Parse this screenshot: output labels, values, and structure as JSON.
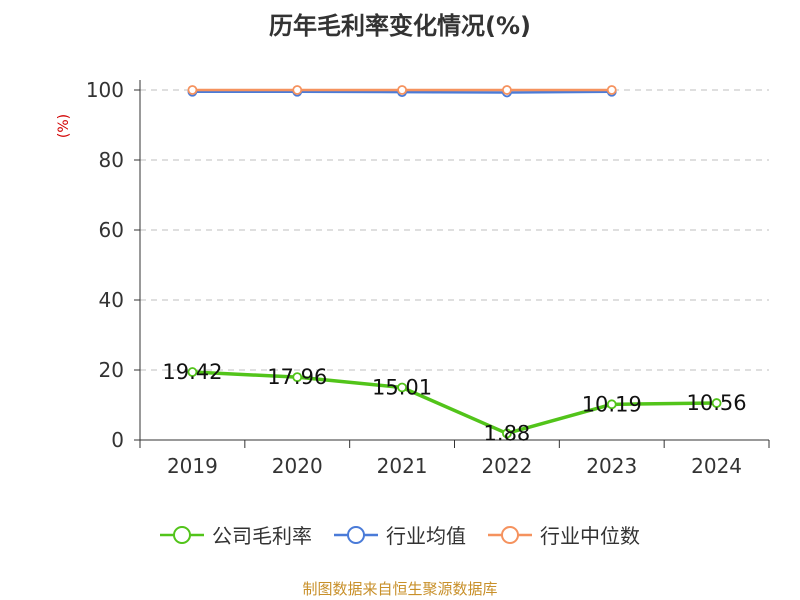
{
  "title": "历年毛利率变化情况(%)",
  "source": "制图数据来自恒生聚源数据库",
  "chart_data": {
    "type": "line",
    "title": "历年毛利率变化情况(%)",
    "ylabel": "(%)",
    "xlabel": "",
    "categories": [
      "2019",
      "2020",
      "2021",
      "2022",
      "2023",
      "2024"
    ],
    "ylim": [
      0,
      100
    ],
    "yticks": [
      0,
      20,
      40,
      60,
      80,
      100
    ],
    "grid": true,
    "legend_position": "bottom",
    "series": [
      {
        "name": "公司毛利率",
        "color": "#52c41a",
        "values": [
          19.42,
          17.96,
          15.01,
          1.88,
          10.19,
          10.56
        ],
        "labels": [
          "19.42",
          "17.96",
          "15.01",
          "1.88",
          "10.19",
          "10.56"
        ]
      },
      {
        "name": "行业均值",
        "color": "#4a7bd8",
        "values": [
          99.5,
          99.5,
          99.4,
          99.3,
          99.5,
          null
        ]
      },
      {
        "name": "行业中位数",
        "color": "#f5925e",
        "values": [
          100,
          100,
          100,
          100,
          100,
          null
        ]
      }
    ]
  }
}
